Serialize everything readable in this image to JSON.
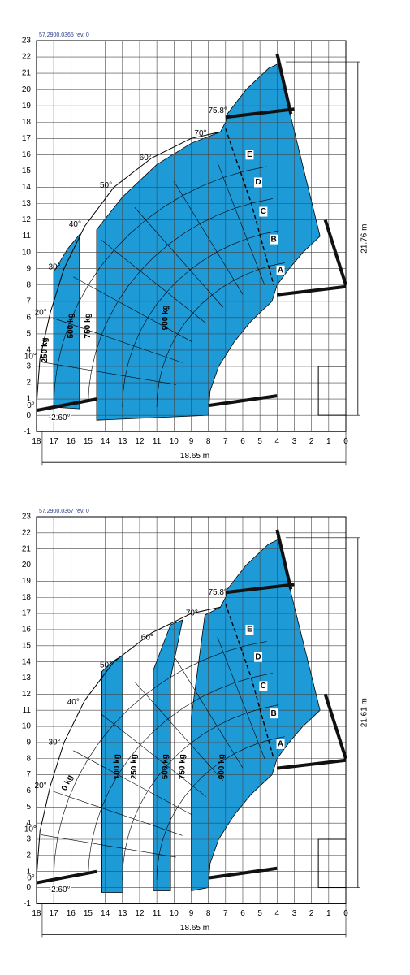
{
  "diagrams": [
    {
      "code": "57.2900.0365   rev. 0",
      "y_ticks": [
        23,
        22,
        21,
        20,
        19,
        18,
        17,
        16,
        15,
        14,
        13,
        12,
        11,
        10,
        9,
        8,
        7,
        6,
        5,
        4,
        3,
        2,
        1,
        0,
        -1
      ],
      "x_ticks": [
        18,
        17,
        16,
        15,
        14,
        13,
        12,
        11,
        10,
        9,
        8,
        7,
        6,
        5,
        4,
        3,
        2,
        1,
        0
      ],
      "angles": [
        "-2.60°",
        "0°",
        "10°",
        "20°",
        "30°",
        "40°",
        "50°",
        "60°",
        "70°",
        "75.8°"
      ],
      "zones": [
        "A",
        "B",
        "C",
        "D",
        "E"
      ],
      "loads": [
        "250 kg",
        "500 kg",
        "750 kg",
        "900 kg"
      ],
      "height": "21.76 m",
      "width": "18.65 m"
    },
    {
      "code": "57.2900.0367   rev. 0",
      "y_ticks": [
        23,
        22,
        21,
        20,
        19,
        18,
        17,
        16,
        15,
        14,
        13,
        12,
        11,
        10,
        9,
        8,
        7,
        6,
        5,
        4,
        3,
        2,
        1,
        0,
        -1
      ],
      "x_ticks": [
        18,
        17,
        16,
        15,
        14,
        13,
        12,
        11,
        10,
        9,
        8,
        7,
        6,
        5,
        4,
        3,
        2,
        1,
        0
      ],
      "angles": [
        "-2.60°",
        "0°",
        "10°",
        "20°",
        "30°",
        "40°",
        "50°",
        "60°",
        "70°",
        "75.8°"
      ],
      "zones": [
        "A",
        "B",
        "C",
        "D",
        "E"
      ],
      "loads": [
        "0 kg",
        "100 kg",
        "250 kg",
        "500 kg",
        "750 kg",
        "900 kg"
      ],
      "height": "21.61 m",
      "width": "18.65 m"
    }
  ]
}
